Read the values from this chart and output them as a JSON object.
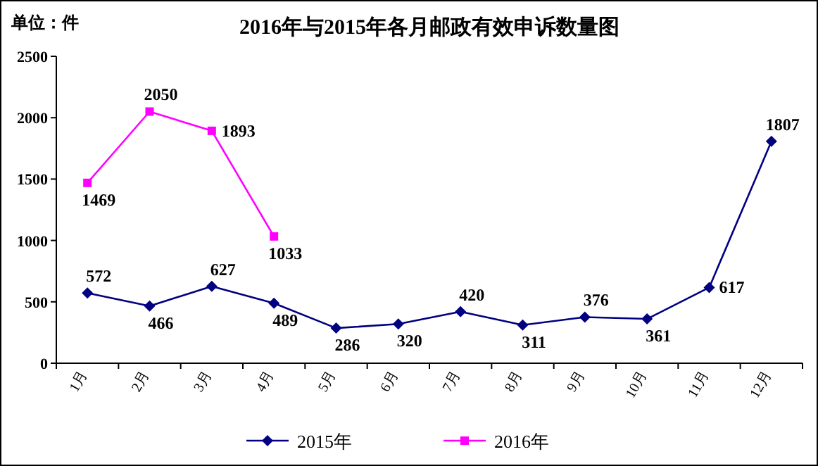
{
  "chart_data": {
    "type": "line",
    "title": "2016年与2015年各月邮政有效申诉数量图",
    "annotations": [
      "单位：件"
    ],
    "categories": [
      "1月",
      "2月",
      "3月",
      "4月",
      "5月",
      "6月",
      "7月",
      "8月",
      "9月",
      "10月",
      "11月",
      "12月"
    ],
    "series": [
      {
        "name": "2015年",
        "color": "#000080",
        "marker": "diamond",
        "values": [
          572,
          466,
          627,
          489,
          286,
          320,
          420,
          311,
          376,
          361,
          617,
          1807
        ]
      },
      {
        "name": "2016年",
        "color": "#ff00ff",
        "marker": "square",
        "values": [
          1469,
          2050,
          1893,
          1033,
          null,
          null,
          null,
          null,
          null,
          null,
          null,
          null
        ]
      }
    ],
    "ylim": [
      0,
      2500
    ],
    "yticks": [
      0,
      500,
      1000,
      1500,
      2000,
      2500
    ],
    "data_labels": true,
    "legend": "bottom",
    "grid": false,
    "line_style": "solid"
  }
}
